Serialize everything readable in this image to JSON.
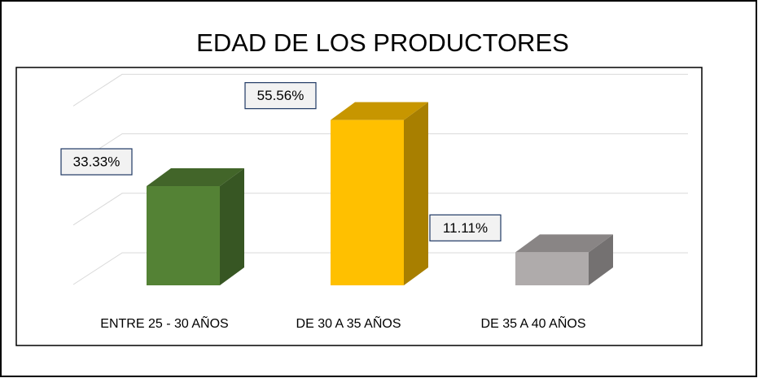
{
  "chart_data": {
    "type": "bar3d",
    "title": "EDAD DE LOS PRODUCTORES",
    "categories": [
      "ENTRE 25 - 30 AÑOS",
      "DE 30 A 35 AÑOS",
      "DE 35 A 40 AÑOS"
    ],
    "values": [
      33.33,
      55.56,
      11.11
    ],
    "value_labels": [
      "33.33%",
      "55.56%",
      "11.11%"
    ],
    "colors": [
      "#548235",
      "#ffc000",
      "#afabab"
    ],
    "ylim": [
      0,
      60
    ],
    "yticks": [
      0,
      20,
      40,
      60
    ],
    "grid": true
  }
}
